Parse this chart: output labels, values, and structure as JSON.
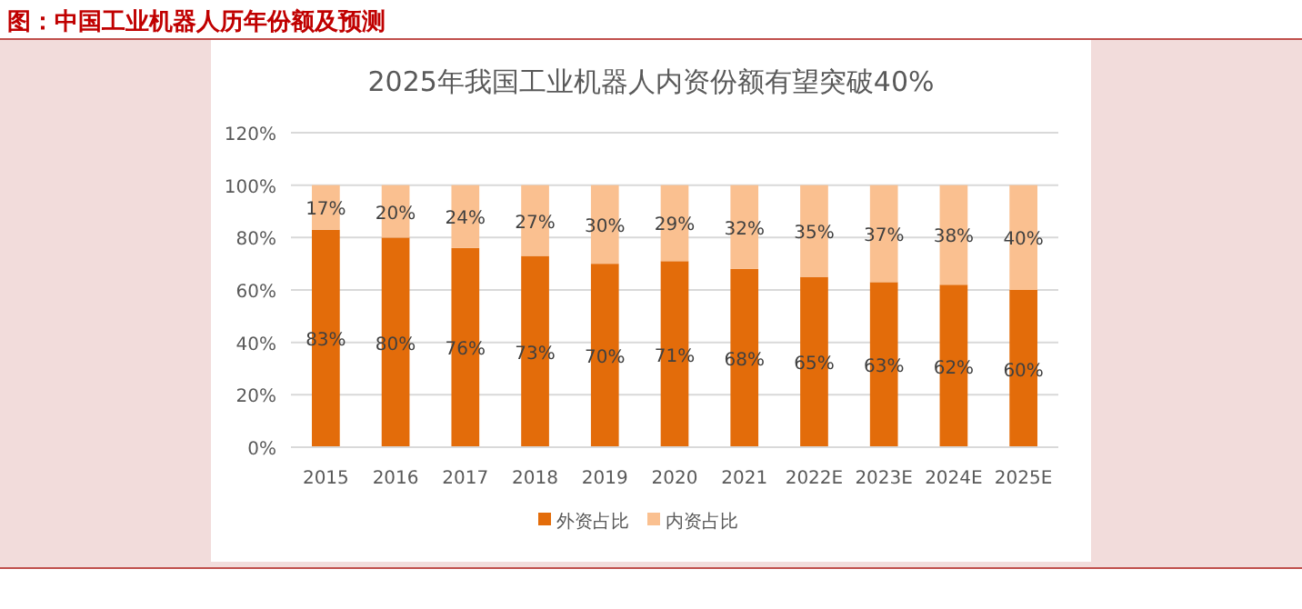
{
  "chart_data": {
    "type": "bar",
    "title": "图：中国工业机器人历年份额及预测",
    "subtitle": "2025年我国工业机器人内资份额有望突破40%",
    "categories": [
      "2015",
      "2016",
      "2017",
      "2018",
      "2019",
      "2020",
      "2021",
      "2022E",
      "2023E",
      "2024E",
      "2025E"
    ],
    "stacked": true,
    "ylim": [
      0,
      120
    ],
    "yticks": [
      {
        "value": 0,
        "label": "0%"
      },
      {
        "value": 20,
        "label": "20%"
      },
      {
        "value": 40,
        "label": "40%"
      },
      {
        "value": 60,
        "label": "60%"
      },
      {
        "value": 80,
        "label": "80%"
      },
      {
        "value": 100,
        "label": "100%"
      },
      {
        "value": 120,
        "label": "120%"
      }
    ],
    "grid": "y",
    "legend": "bottom",
    "series": [
      {
        "name": "外资占比",
        "color": "#e36c0a",
        "values": [
          83,
          80,
          76,
          73,
          70,
          71,
          68,
          65,
          63,
          62,
          60
        ],
        "value_labels": [
          "83%",
          "80%",
          "76%",
          "73%",
          "70%",
          "71%",
          "68%",
          "65%",
          "63%",
          "62%",
          "60%"
        ]
      },
      {
        "name": "内资占比",
        "color": "#fac090",
        "values": [
          17,
          20,
          24,
          27,
          30,
          29,
          32,
          35,
          37,
          38,
          40
        ],
        "value_labels": [
          "17%",
          "20%",
          "24%",
          "27%",
          "30%",
          "29%",
          "32%",
          "35%",
          "37%",
          "38%",
          "40%"
        ]
      }
    ]
  }
}
